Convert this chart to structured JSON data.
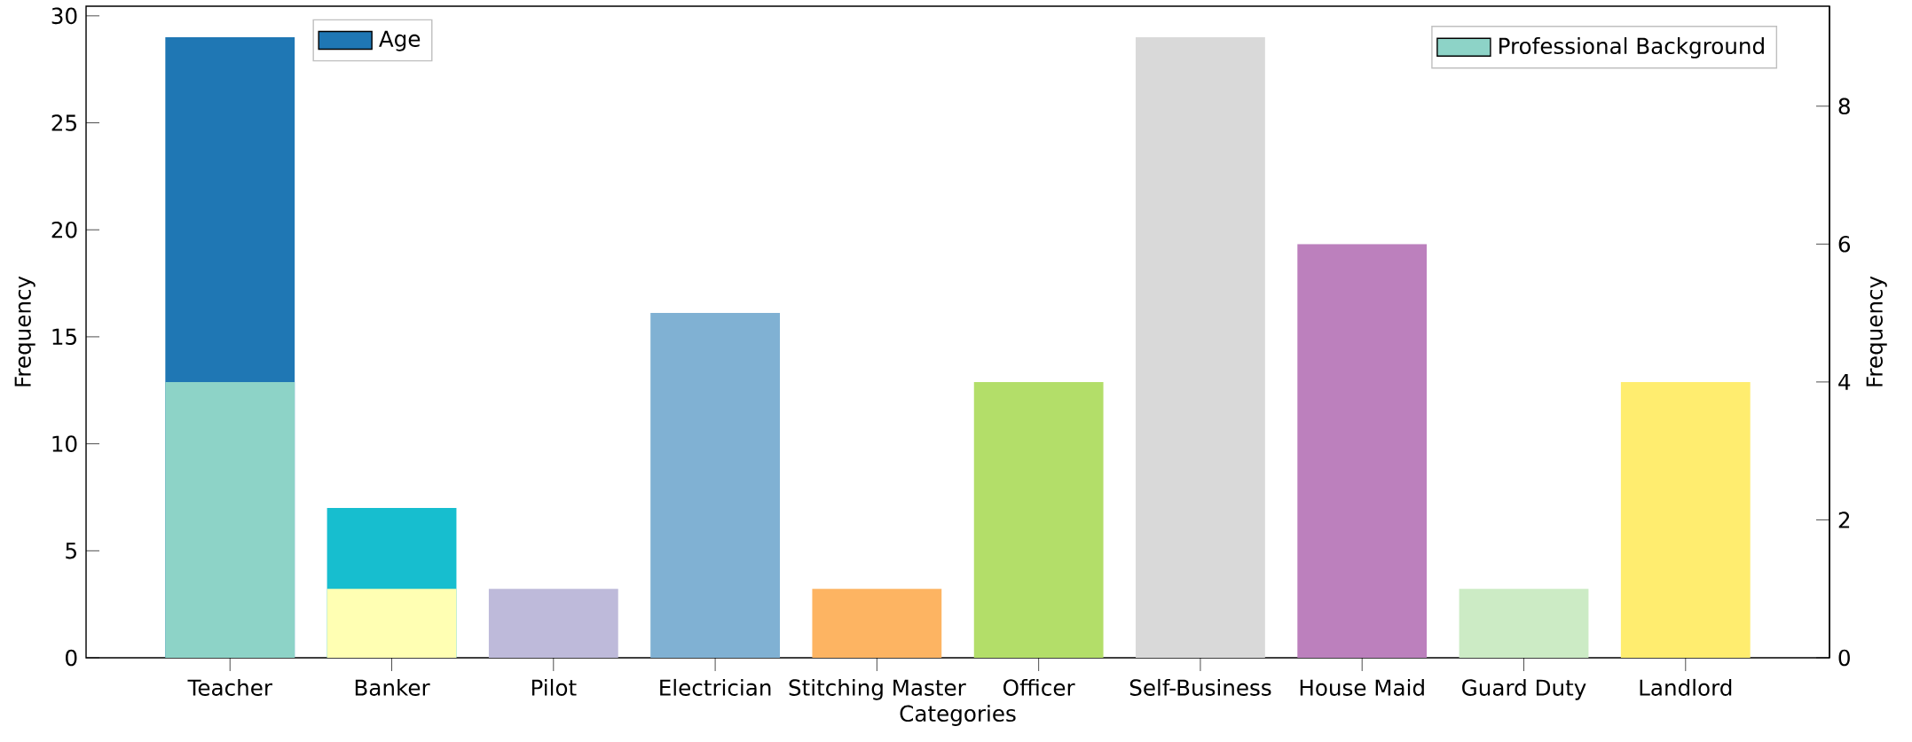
{
  "chart_data": {
    "type": "bar",
    "xlabel": "Categories",
    "ylabel": "Frequency",
    "y2label": "Frequency",
    "categories": [
      "Teacher",
      "Banker",
      "Pilot",
      "Electrician",
      "Stitching Master",
      "Officer",
      "Self-Business",
      "House Maid",
      "Guard Duty",
      "Landlord"
    ],
    "series": [
      {
        "name": "Age",
        "colors": [
          "#1f77b4",
          "#17becf",
          null,
          null,
          null,
          null,
          null,
          null,
          null,
          null
        ],
        "values": [
          29,
          7,
          null,
          null,
          null,
          null,
          null,
          null,
          null,
          null
        ]
      },
      {
        "name": "Professional Background",
        "axis": "y2",
        "colors": [
          "#8dd3c7",
          "#ffffb3",
          "#bebada",
          "#80b1d3",
          "#fdb462",
          "#b3de69",
          "#d9d9d9",
          "#bc80bd",
          "#ccebc5",
          "#ffed6f"
        ],
        "values": [
          4,
          1,
          1,
          5,
          1,
          4,
          9,
          6,
          1,
          4
        ]
      }
    ],
    "ylim": [
      0,
      30.45
    ],
    "yticks": [
      0,
      5,
      10,
      15,
      20,
      25,
      30
    ],
    "y2lim": [
      0,
      9.45
    ],
    "y2ticks": [
      0,
      2,
      4,
      6,
      8
    ],
    "legend": "top"
  }
}
